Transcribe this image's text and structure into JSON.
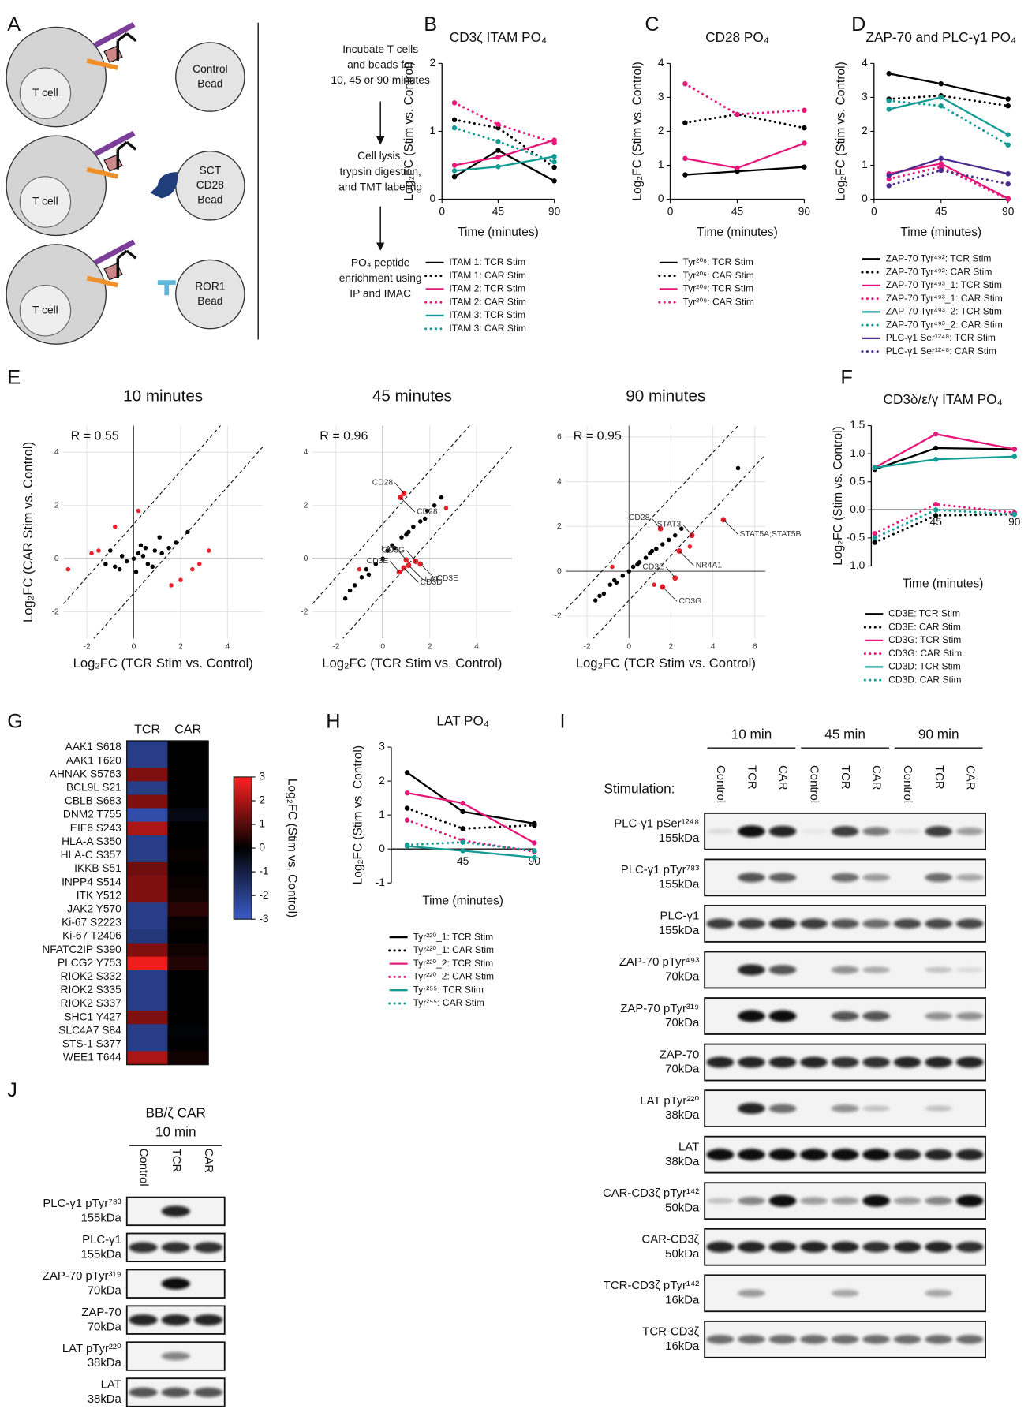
{
  "panel_labels": [
    "A",
    "B",
    "C",
    "D",
    "E",
    "F",
    "G",
    "H",
    "I",
    "J"
  ],
  "schematic": {
    "cell_label": "T cell",
    "beads": [
      [
        "Control",
        "Bead"
      ],
      [
        "SCT",
        "CD28",
        "Bead"
      ],
      [
        "ROR1",
        "Bead"
      ]
    ],
    "steps": [
      [
        "Incubate T cells",
        "and beads for",
        "10, 45 or 90 minutes"
      ],
      [
        "Cell lysis,",
        "trypsin digestion,",
        "and TMT labeling"
      ],
      [
        "PO₄ peptide",
        "enrichment using",
        "IP and IMAC"
      ]
    ]
  },
  "chart_data": [
    {
      "type": "line",
      "title": "CD3ζ ITAM PO₄",
      "ylabel": "Log₂FC (Stim vs. Control)",
      "xlabel": "Time (minutes)",
      "x": [
        10,
        45,
        90
      ],
      "xlim": [
        0,
        90
      ],
      "xticks": [
        0,
        45,
        90
      ],
      "ylim": [
        0,
        2
      ],
      "yticks": [
        0,
        1,
        2
      ],
      "series": [
        {
          "name": "ITAM 1: TCR Stim",
          "color": "#000000",
          "style": "solid",
          "values": [
            0.33,
            0.72,
            0.27
          ]
        },
        {
          "name": "ITAM 1: CAR Stim",
          "color": "#000000",
          "style": "dotted",
          "values": [
            1.17,
            1.05,
            0.47
          ]
        },
        {
          "name": "ITAM 2: TCR Stim",
          "color": "#e6197a",
          "style": "solid",
          "values": [
            0.5,
            0.62,
            0.87
          ]
        },
        {
          "name": "ITAM 2: CAR Stim",
          "color": "#e6197a",
          "style": "dotted",
          "values": [
            1.42,
            1.1,
            0.83
          ]
        },
        {
          "name": "ITAM 3: TCR Stim",
          "color": "#139b94",
          "style": "solid",
          "values": [
            0.42,
            0.48,
            0.63
          ]
        },
        {
          "name": "ITAM 3: CAR Stim",
          "color": "#139b94",
          "style": "dotted",
          "values": [
            1.05,
            0.85,
            0.55
          ]
        }
      ]
    },
    {
      "type": "line",
      "title": "CD28 PO₄",
      "ylabel": "Log₂FC (Stim vs. Control)",
      "xlabel": "Time (minutes)",
      "x": [
        10,
        45,
        90
      ],
      "xlim": [
        0,
        90
      ],
      "xticks": [
        0,
        45,
        90
      ],
      "ylim": [
        0,
        4
      ],
      "yticks": [
        0,
        1,
        2,
        3,
        4
      ],
      "series": [
        {
          "name": "Tyr²⁰⁶: TCR Stim",
          "color": "#000000",
          "style": "solid",
          "values": [
            0.72,
            0.82,
            0.95
          ]
        },
        {
          "name": "Tyr²⁰⁶: CAR Stim",
          "color": "#000000",
          "style": "dotted",
          "values": [
            2.25,
            2.5,
            2.1
          ]
        },
        {
          "name": "Tyr²⁰⁹: TCR Stim",
          "color": "#e6197a",
          "style": "solid",
          "values": [
            1.2,
            0.92,
            1.65
          ]
        },
        {
          "name": "Tyr²⁰⁹: CAR Stim",
          "color": "#e6197a",
          "style": "dotted",
          "values": [
            3.4,
            2.5,
            2.62
          ]
        }
      ]
    },
    {
      "type": "line",
      "title": "ZAP-70 and PLC-γ1 PO₄",
      "ylabel": "Log₂FC (Stim vs. Control)",
      "xlabel": "Time (minutes)",
      "x": [
        10,
        45,
        90
      ],
      "xlim": [
        0,
        90
      ],
      "xticks": [
        0,
        45,
        90
      ],
      "ylim": [
        0,
        4
      ],
      "yticks": [
        0,
        1,
        2,
        3,
        4
      ],
      "series": [
        {
          "name": "ZAP-70 Tyr⁴⁹²: TCR Stim",
          "color": "#000000",
          "style": "solid",
          "values": [
            3.7,
            3.4,
            2.95
          ]
        },
        {
          "name": "ZAP-70 Tyr⁴⁹²: CAR Stim",
          "color": "#000000",
          "style": "dotted",
          "values": [
            2.95,
            3.05,
            2.75
          ]
        },
        {
          "name": "ZAP-70 Tyr⁴⁹³_1: TCR Stim",
          "color": "#e6197a",
          "style": "solid",
          "values": [
            0.75,
            1.05,
            0.02
          ]
        },
        {
          "name": "ZAP-70 Tyr⁴⁹³_1: CAR Stim",
          "color": "#e6197a",
          "style": "dotted",
          "values": [
            0.6,
            0.95,
            0.0
          ]
        },
        {
          "name": "ZAP-70 Tyr⁴⁹³_2: TCR Stim",
          "color": "#139b94",
          "style": "solid",
          "values": [
            2.65,
            3.0,
            1.9
          ]
        },
        {
          "name": "ZAP-70 Tyr⁴⁹³_2: CAR Stim",
          "color": "#139b94",
          "style": "dotted",
          "values": [
            2.9,
            2.75,
            1.6
          ]
        },
        {
          "name": "PLC-γ1 Ser¹²⁴⁸: TCR Stim",
          "color": "#4a2c8f",
          "style": "solid",
          "values": [
            0.7,
            1.2,
            0.75
          ]
        },
        {
          "name": "PLC-γ1 Ser¹²⁴⁸: CAR Stim",
          "color": "#4a2c8f",
          "style": "dotted",
          "values": [
            0.4,
            0.85,
            0.45
          ]
        }
      ]
    },
    {
      "type": "scatter",
      "title": "10 minutes",
      "annotation": "R = 0.55",
      "ylabel": "Log₂FC (CAR Stim vs. Control)",
      "xlabel": "Log₂FC (TCR Stim vs. Control)",
      "xlim": [
        -3,
        5.5
      ],
      "ylim": [
        -3,
        5
      ],
      "xticks": [
        -2,
        0,
        2,
        4
      ],
      "yticks": [
        -2,
        0,
        2,
        4
      ],
      "groups": [
        {
          "color": "#000000",
          "x": [
            -1.2,
            -0.8,
            -0.5,
            -0.3,
            0,
            0.2,
            0.4,
            0.6,
            0.9,
            1.2,
            1.5,
            -0.6,
            0.3,
            0.8,
            1.8,
            2.3,
            -1.0,
            0.1,
            0.5,
            1.1
          ],
          "y": [
            -0.2,
            -0.3,
            0.1,
            -0.1,
            0,
            0.2,
            0.1,
            -0.2,
            0.3,
            0.2,
            0.4,
            -0.4,
            0.5,
            -0.3,
            0.6,
            1.0,
            0.3,
            -0.5,
            0.4,
            0.8
          ]
        },
        {
          "color": "#e8202a",
          "x": [
            -1.8,
            -1.5,
            2.5,
            2.8,
            3.2,
            -2.8,
            1.6,
            2.0,
            -0.8,
            0.2
          ],
          "y": [
            0.2,
            0.3,
            -0.4,
            -0.2,
            0.3,
            -0.4,
            -1.0,
            -0.8,
            1.2,
            1.8
          ]
        }
      ],
      "labels": []
    },
    {
      "type": "scatter",
      "title": "45 minutes",
      "annotation": "R = 0.96",
      "xlabel": "Log₂FC (TCR Stim vs. Control)",
      "xlim": [
        -3,
        5.5
      ],
      "ylim": [
        -3,
        5
      ],
      "xticks": [
        -2,
        0,
        2,
        4
      ],
      "yticks": [
        -2,
        0,
        2,
        4
      ],
      "groups": [
        {
          "color": "#000000",
          "x": [
            -1.6,
            -1.2,
            -0.9,
            -0.6,
            -0.3,
            0,
            0.2,
            0.5,
            0.8,
            1.0,
            1.3,
            1.6,
            1.9,
            2.2,
            2.5,
            -1.4,
            -0.7,
            0.4,
            1.1,
            1.8
          ],
          "y": [
            -1.5,
            -1.0,
            -0.7,
            -0.6,
            -0.2,
            0,
            0.3,
            0.4,
            0.8,
            0.9,
            1.2,
            1.4,
            1.8,
            2.0,
            2.3,
            -1.2,
            -0.4,
            0.5,
            1.0,
            1.5
          ]
        },
        {
          "color": "#e8202a",
          "x": [
            -1.0,
            2.7
          ],
          "y": [
            -0.4,
            1.9
          ]
        }
      ],
      "labels": [
        {
          "text": "CD28",
          "x": 0.9,
          "y": 2.45
        },
        {
          "text": "CD28",
          "x": 0.75,
          "y": 2.3
        },
        {
          "text": "LAT",
          "x": 1.0,
          "y": -0.05
        },
        {
          "text": "LAT",
          "x": 1.1,
          "y": -0.25
        },
        {
          "text": "CD3G",
          "x": 1.4,
          "y": -0.1
        },
        {
          "text": "CD3D",
          "x": 0.9,
          "y": -0.35
        },
        {
          "text": "CD3E",
          "x": 0.7,
          "y": -0.5
        },
        {
          "text": "CD3E",
          "x": 1.6,
          "y": -0.2
        }
      ]
    },
    {
      "type": "scatter",
      "title": "90 minutes",
      "annotation": "R = 0.95",
      "xlabel": "Log₂FC (TCR Stim vs. Control)",
      "xlim": [
        -3,
        6.5
      ],
      "ylim": [
        -3,
        6.5
      ],
      "xticks": [
        -2,
        0,
        2,
        4,
        6
      ],
      "yticks": [
        -2,
        0,
        2,
        4,
        6
      ],
      "groups": [
        {
          "color": "#000000",
          "x": [
            -1.6,
            -1.2,
            -0.9,
            -0.6,
            -0.3,
            0,
            0.2,
            0.5,
            0.8,
            1.0,
            1.3,
            1.6,
            1.9,
            2.2,
            2.5,
            -1.4,
            -0.7,
            0.4,
            1.1,
            5.2
          ],
          "y": [
            -1.3,
            -1.0,
            -0.6,
            -0.5,
            -0.2,
            0,
            0.2,
            0.4,
            0.6,
            0.8,
            1.0,
            1.2,
            1.4,
            1.6,
            1.9,
            -1.1,
            -0.4,
            0.3,
            0.9,
            4.6
          ]
        },
        {
          "color": "#e8202a",
          "x": [
            -0.8,
            2.9,
            1.2
          ],
          "y": [
            0.2,
            1.1,
            -0.6
          ]
        }
      ],
      "labels": [
        {
          "text": "CD28",
          "x": 1.5,
          "y": 1.9
        },
        {
          "text": "STAT5A;STAT5B",
          "x": 4.5,
          "y": 2.3
        },
        {
          "text": "STAT3",
          "x": 3.0,
          "y": 1.6
        },
        {
          "text": "NR4A1",
          "x": 2.4,
          "y": 0.9
        },
        {
          "text": "CD3E",
          "x": 2.2,
          "y": -0.3
        },
        {
          "text": "CD3G",
          "x": 1.6,
          "y": -0.7
        }
      ]
    },
    {
      "type": "line",
      "title": "CD3δ/ε/γ ITAM PO₄",
      "ylabel": "Log₂FC (Stim vs. Control)",
      "xlabel": "Time (minutes)",
      "x": [
        10,
        45,
        90
      ],
      "xlim": [
        8,
        90
      ],
      "xticks": [
        45,
        90
      ],
      "ylim": [
        -1,
        1.5
      ],
      "yticks": [
        {
          "value": -1,
          "label": "-1.0"
        },
        -0.5,
        {
          "value": 0,
          "label": "0.0"
        },
        0.5,
        {
          "value": 1,
          "label": "1.0"
        },
        1.5
      ],
      "series": [
        {
          "name": "CD3E: TCR Stim",
          "color": "#000000",
          "style": "solid",
          "values": [
            0.72,
            1.1,
            1.08
          ]
        },
        {
          "name": "CD3E: CAR Stim",
          "color": "#000000",
          "style": "dotted",
          "values": [
            -0.58,
            -0.1,
            -0.08
          ]
        },
        {
          "name": "CD3G: TCR Stim",
          "color": "#e6197a",
          "style": "solid",
          "values": [
            0.75,
            1.35,
            1.08
          ]
        },
        {
          "name": "CD3G: CAR Stim",
          "color": "#e6197a",
          "style": "dotted",
          "values": [
            -0.42,
            0.1,
            -0.05
          ]
        },
        {
          "name": "CD3D: TCR Stim",
          "color": "#139b94",
          "style": "solid",
          "values": [
            0.75,
            0.9,
            0.95
          ]
        },
        {
          "name": "CD3D: CAR Stim",
          "color": "#139b94",
          "style": "dotted",
          "values": [
            -0.5,
            0.0,
            -0.08
          ]
        }
      ]
    },
    {
      "type": "heatmap",
      "columns": [
        "TCR",
        "CAR"
      ],
      "rows": [
        "AAK1 S618",
        "AAK1 T620",
        "AHNAK S5763",
        "BCL9L S21",
        "CBLB S683",
        "DNM2 T755",
        "EIF6 S243",
        "HLA-A S350",
        "HLA-C S357",
        "IKKB S51",
        "INPP4 S514",
        "ITK Y512",
        "JAK2 Y570",
        "Ki-67 S2223",
        "Ki-67 T2406",
        "NFATC2IP S390",
        "PLCG2 Y753",
        "RIOK2 S332",
        "RIOK2 S335",
        "RIOK2 S337",
        "SHC1 Y427",
        "SLC4A7 S84",
        "STS-1 S377",
        "WEE1 T644"
      ],
      "values": [
        [
          -2,
          0
        ],
        [
          -2,
          0
        ],
        [
          1.5,
          0
        ],
        [
          -2,
          0
        ],
        [
          1.5,
          0
        ],
        [
          -2.5,
          -0.3
        ],
        [
          2,
          0
        ],
        [
          -2,
          0
        ],
        [
          -2,
          0.1
        ],
        [
          1.3,
          0
        ],
        [
          1.5,
          0.1
        ],
        [
          1.5,
          0.2
        ],
        [
          -2,
          0.5
        ],
        [
          -2,
          0.1
        ],
        [
          -1.8,
          0
        ],
        [
          1.5,
          0.2
        ],
        [
          2.8,
          0.4
        ],
        [
          -2,
          0
        ],
        [
          -2,
          0
        ],
        [
          -2,
          0
        ],
        [
          1.5,
          0
        ],
        [
          -2,
          -0.1
        ],
        [
          -2,
          0
        ],
        [
          2,
          0.2
        ]
      ],
      "zlim": [
        -3,
        3
      ],
      "zticks": [
        3,
        2,
        1,
        0,
        -1,
        -2,
        -3
      ],
      "colors": [
        "#3b5bc9",
        "#000000",
        "#ff2020"
      ],
      "zlabel": "Log₂FC (Stim vs. Control)"
    },
    {
      "type": "line",
      "title": "LAT PO₄",
      "ylabel": "Log₂FC (Stim vs. Control)",
      "xlabel": "Time (minutes)",
      "x": [
        10,
        45,
        90
      ],
      "xlim": [
        0,
        90
      ],
      "xticks": [
        45,
        90
      ],
      "ylim": [
        -1,
        3
      ],
      "yticks": [
        -1,
        0,
        1,
        2,
        3
      ],
      "series": [
        {
          "name": "Tyr²²⁰_1: TCR Stim",
          "color": "#000000",
          "style": "solid",
          "values": [
            2.25,
            1.1,
            0.75
          ]
        },
        {
          "name": "Tyr²²⁰_1: CAR Stim",
          "color": "#000000",
          "style": "dotted",
          "values": [
            1.2,
            0.6,
            0.7
          ]
        },
        {
          "name": "Tyr²²⁰_2: TCR Stim",
          "color": "#e6197a",
          "style": "solid",
          "values": [
            1.65,
            1.35,
            0.18
          ]
        },
        {
          "name": "Tyr²²⁰_2: CAR Stim",
          "color": "#e6197a",
          "style": "dotted",
          "values": [
            0.85,
            0.25,
            -0.08
          ]
        },
        {
          "name": "Tyr²⁵⁵: TCR Stim",
          "color": "#139b94",
          "style": "solid",
          "values": [
            0.08,
            -0.05,
            -0.25
          ]
        },
        {
          "name": "Tyr²⁵⁵: CAR Stim",
          "color": "#139b94",
          "style": "dotted",
          "values": [
            0.12,
            0.2,
            -0.05
          ]
        }
      ]
    }
  ],
  "blots": {
    "I": {
      "groups": [
        "10 min",
        "45 min",
        "90 min"
      ],
      "stimulation_label": "Stimulation:",
      "lanes": [
        "Control",
        "TCR",
        "CAR",
        "Control",
        "TCR",
        "CAR",
        "Control",
        "TCR",
        "CAR"
      ],
      "rows": [
        [
          "PLC-γ1 pSer¹²⁴⁸",
          "155kDa"
        ],
        [
          "PLC-γ1 pTyr⁷⁸³",
          "155kDa"
        ],
        [
          "PLC-γ1",
          "155kDa"
        ],
        [
          "ZAP-70 pTyr⁴⁹³",
          "70kDa"
        ],
        [
          "ZAP-70 pTyr³¹⁹",
          "70kDa"
        ],
        [
          "ZAP-70",
          "70kDa"
        ],
        [
          "LAT pTyr²²⁰",
          "38kDa"
        ],
        [
          "LAT",
          "38kDa"
        ],
        [
          "CAR-CD3ζ pTyr¹⁴²",
          "50kDa"
        ],
        [
          "CAR-CD3ζ",
          "50kDa"
        ],
        [
          "TCR-CD3ζ pTyr¹⁴²",
          "16kDa"
        ],
        [
          "TCR-CD3ζ",
          "16kDa"
        ]
      ]
    },
    "J": {
      "title": "BB/ζ CAR",
      "groups": [
        "10 min"
      ],
      "lanes": [
        "Control",
        "TCR",
        "CAR"
      ],
      "rows": [
        [
          "PLC-γ1 pTyr⁷⁸³",
          "155kDa"
        ],
        [
          "PLC-γ1",
          "155kDa"
        ],
        [
          "ZAP-70 pTyr³¹⁹",
          "70kDa"
        ],
        [
          "ZAP-70",
          "70kDa"
        ],
        [
          "LAT pTyr²²⁰",
          "38kDa"
        ],
        [
          "LAT",
          "38kDa"
        ]
      ]
    }
  }
}
